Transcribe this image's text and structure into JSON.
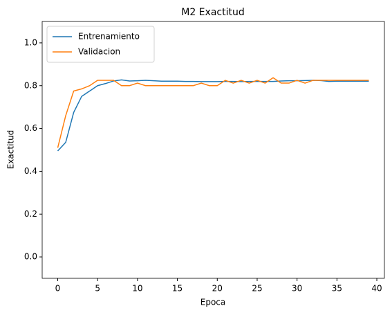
{
  "chart_data": {
    "type": "line",
    "title": "M2 Exactitud",
    "x_label": "Epoca",
    "y_label": "Exactitud",
    "x": [
      0,
      1,
      2,
      3,
      4,
      5,
      6,
      7,
      8,
      9,
      10,
      11,
      12,
      13,
      14,
      15,
      16,
      17,
      18,
      19,
      20,
      21,
      22,
      23,
      24,
      25,
      26,
      27,
      28,
      29,
      30,
      31,
      32,
      33,
      34,
      35,
      36,
      37,
      38,
      39
    ],
    "series": [
      {
        "name": "Entrenamiento",
        "color": "#1f77b4",
        "values": [
          0.495,
          0.535,
          0.675,
          0.75,
          0.775,
          0.8,
          0.81,
          0.822,
          0.827,
          0.822,
          0.823,
          0.825,
          0.823,
          0.821,
          0.821,
          0.821,
          0.82,
          0.82,
          0.819,
          0.819,
          0.819,
          0.82,
          0.82,
          0.819,
          0.82,
          0.82,
          0.82,
          0.82,
          0.822,
          0.823,
          0.823,
          0.824,
          0.825,
          0.824,
          0.82,
          0.821,
          0.821,
          0.821,
          0.821,
          0.821
        ]
      },
      {
        "name": "Validacion",
        "color": "#ff7f0e",
        "values": [
          0.51,
          0.66,
          0.775,
          0.785,
          0.8,
          0.825,
          0.825,
          0.825,
          0.8,
          0.8,
          0.812,
          0.8,
          0.8,
          0.8,
          0.8,
          0.8,
          0.8,
          0.8,
          0.812,
          0.8,
          0.8,
          0.825,
          0.812,
          0.825,
          0.812,
          0.825,
          0.812,
          0.837,
          0.812,
          0.812,
          0.825,
          0.812,
          0.825,
          0.825,
          0.825,
          0.825,
          0.825,
          0.825,
          0.825,
          0.825
        ]
      }
    ],
    "xlim": [
      -1.95,
      40.95
    ],
    "xticks": [
      0,
      5,
      10,
      15,
      20,
      25,
      30,
      35,
      40
    ],
    "ylim": [
      -0.1,
      1.1
    ],
    "yticks": [
      {
        "value": 0,
        "label": "0.0"
      },
      0.2,
      0.4,
      0.6,
      0.8,
      {
        "value": 1,
        "label": "1.0"
      }
    ],
    "legend": "upper left",
    "grid": false
  }
}
